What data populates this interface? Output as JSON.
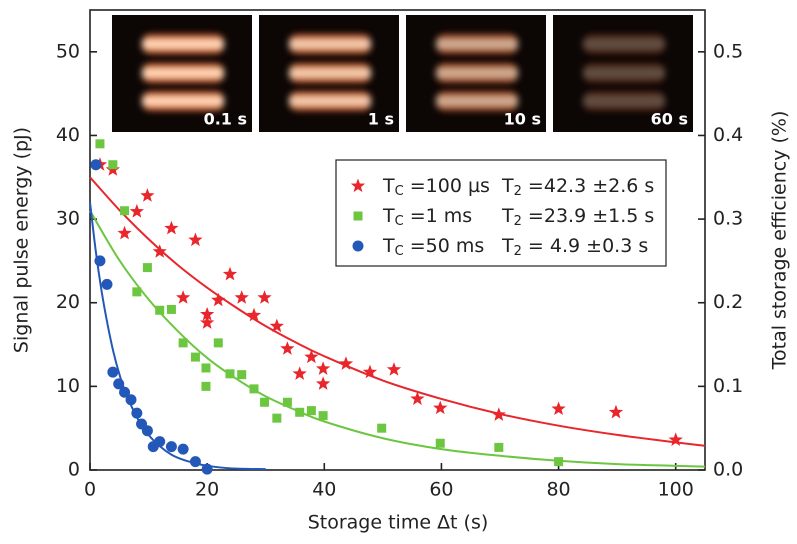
{
  "chart_data": {
    "type": "scatter",
    "xlabel": "Storage time Δt (s)",
    "ylabel": "Signal pulse energy (pJ)",
    "y2label": "Total storage efficiency (%)",
    "xlim": [
      0,
      105
    ],
    "ylim": [
      0,
      55
    ],
    "y2lim": [
      0,
      0.55
    ],
    "xticks": [
      0,
      20,
      40,
      60,
      80,
      100
    ],
    "yticks": [
      0,
      10,
      20,
      30,
      40,
      50
    ],
    "y2ticks": [
      {
        "value": 0,
        "label": "0.0"
      },
      0.1,
      0.2,
      0.3,
      0.4,
      0.5
    ],
    "insets": [
      "0.1 s",
      "1 s",
      "10 s",
      "60 s"
    ],
    "series": [
      {
        "name": "TC =100 µs",
        "t2_label": "T2 =42.3 ±2.6 s",
        "color": "#e8262b",
        "marker": "star",
        "x": [
          1.7,
          3.9,
          5.9,
          8,
          9.8,
          11.9,
          13.9,
          15.9,
          18,
          20,
          20,
          21.9,
          23.9,
          25.9,
          28,
          29.8,
          31.9,
          33.7,
          35.8,
          37.8,
          39.8,
          39.8,
          43.7,
          47.8,
          51.9,
          55.9,
          59.8,
          69.8,
          80,
          89.8,
          100
        ],
        "values": [
          36.5,
          35.9,
          28.3,
          30.9,
          32.8,
          26.1,
          28.9,
          20.6,
          27.5,
          18.6,
          17.6,
          20.3,
          23.4,
          20.6,
          18.5,
          20.6,
          17.2,
          14.5,
          11.5,
          13.5,
          12.1,
          10.3,
          12.7,
          11.7,
          12,
          8.5,
          7.4,
          6.6,
          7.3,
          6.9,
          3.6
        ]
      },
      {
        "name": "TC =1 ms",
        "t2_label": "T2 =23.9 ±1.5 s",
        "color": "#6cc640",
        "marker": "square",
        "x": [
          1.7,
          3.9,
          5.9,
          8,
          9.8,
          11.9,
          13.9,
          15.9,
          18,
          19.8,
          19.8,
          21.9,
          23.9,
          25.9,
          28,
          29.8,
          31.9,
          33.7,
          35.8,
          37.8,
          39.8,
          49.8,
          59.8,
          69.8,
          80
        ],
        "values": [
          39,
          36.5,
          31,
          21.3,
          24.2,
          19.1,
          19.2,
          15.2,
          13.5,
          12.2,
          10,
          15.2,
          11.5,
          11.4,
          9.7,
          8.1,
          6.2,
          8.1,
          6.9,
          7.1,
          6.5,
          5,
          3.2,
          2.7,
          1
        ]
      },
      {
        "name": "TC =50 ms",
        "t2_label": "T2 =  4.9 ±0.3 s",
        "color": "#2458b8",
        "marker": "circle",
        "x": [
          1,
          1.7,
          2.9,
          3.9,
          4.9,
          5.9,
          7,
          8,
          8.8,
          9.8,
          10.8,
          11.9,
          13.9,
          15.9,
          18,
          20
        ],
        "values": [
          36.5,
          25,
          22.2,
          11.7,
          10.3,
          9.3,
          8.4,
          6.8,
          5.5,
          4.7,
          2.8,
          3.4,
          2.8,
          2.5,
          1,
          0.1
        ]
      }
    ],
    "fits": [
      {
        "color": "#e8262b",
        "x": [
          0,
          5,
          10,
          15,
          20,
          25,
          30,
          35,
          40,
          50,
          60,
          70,
          80,
          90,
          100,
          105
        ],
        "values": [
          35,
          31.1,
          27.6,
          24.5,
          21.8,
          19.4,
          17.2,
          15.3,
          13.6,
          10.7,
          8.5,
          6.7,
          5.3,
          4.2,
          3.3,
          2.9
        ]
      },
      {
        "color": "#6cc640",
        "x": [
          0,
          5,
          10,
          15,
          20,
          25,
          30,
          35,
          40,
          50,
          60,
          70,
          80,
          90,
          100,
          105
        ],
        "values": [
          31,
          25.1,
          20.4,
          16.6,
          13.4,
          10.9,
          8.8,
          7.2,
          5.8,
          3.8,
          2.5,
          1.7,
          1.1,
          0.7,
          0.5,
          0.4
        ]
      },
      {
        "color": "#2458b8",
        "x": [
          0,
          1,
          2,
          3,
          4,
          5,
          6,
          8,
          10,
          12,
          14,
          16,
          18,
          20,
          24,
          30
        ],
        "values": [
          32,
          26.1,
          21.3,
          17.4,
          14.1,
          11.5,
          9.4,
          6.3,
          4.2,
          2.8,
          1.8,
          1.2,
          0.8,
          0.5,
          0.2,
          0.1
        ]
      }
    ]
  }
}
